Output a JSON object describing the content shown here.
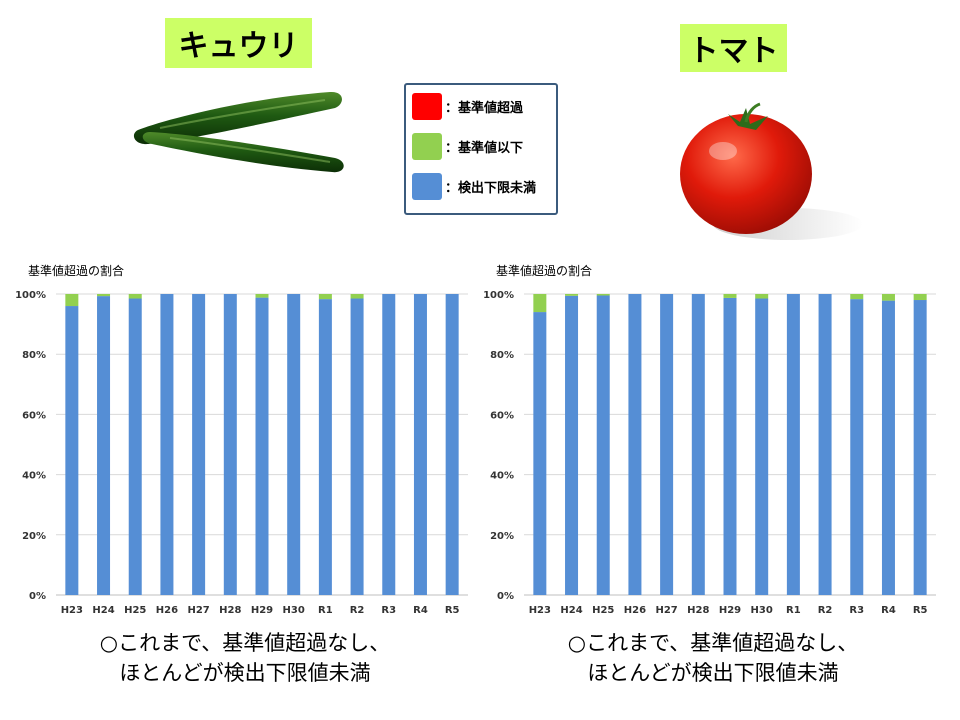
{
  "titles": {
    "left": "キュウリ",
    "right": "トマト"
  },
  "legend": [
    {
      "label": "：基準値超過",
      "color": "#ff0000"
    },
    {
      "label": "：基準値以下",
      "color": "#92d050"
    },
    {
      "label": "：検出下限未満",
      "color": "#558ed5"
    }
  ],
  "captions": {
    "left": [
      "○これまで、基準値超過なし、",
      "ほとんどが検出下限値未満"
    ],
    "right": [
      "○これまで、基準値超過なし、",
      "ほとんどが検出下限値未満"
    ]
  },
  "chart_data": [
    {
      "type": "bar",
      "stacked": true,
      "title": "基準値超過の割合",
      "categories": [
        "H23",
        "H24",
        "H25",
        "H26",
        "H27",
        "H28",
        "H29",
        "H30",
        "R1",
        "R2",
        "R3",
        "R4",
        "R5"
      ],
      "yticks": [
        "0%",
        "20%",
        "40%",
        "60%",
        "80%",
        "100%"
      ],
      "ylim": [
        0,
        100
      ],
      "grid": true,
      "series": [
        {
          "name": "：検出下限未満",
          "color": "#558ed5",
          "values": [
            96,
            99.3,
            98.5,
            100,
            100,
            100,
            98.8,
            100,
            98.3,
            98.5,
            100,
            100,
            100
          ]
        },
        {
          "name": "：基準値以下",
          "color": "#92d050",
          "values": [
            4,
            0.7,
            1.5,
            0,
            0,
            0,
            1.2,
            0,
            1.7,
            1.5,
            0,
            0,
            0
          ]
        },
        {
          "name": "：基準値超過",
          "color": "#ff0000",
          "values": [
            0,
            0,
            0,
            0,
            0,
            0,
            0,
            0,
            0,
            0,
            0,
            0,
            0
          ]
        }
      ]
    },
    {
      "type": "bar",
      "stacked": true,
      "title": "基準値超過の割合",
      "categories": [
        "H23",
        "H24",
        "H25",
        "H26",
        "H27",
        "H28",
        "H29",
        "H30",
        "R1",
        "R2",
        "R3",
        "R4",
        "R5"
      ],
      "yticks": [
        "0%",
        "20%",
        "40%",
        "60%",
        "80%",
        "100%"
      ],
      "ylim": [
        0,
        100
      ],
      "grid": true,
      "series": [
        {
          "name": "：検出下限未満",
          "color": "#558ed5",
          "values": [
            94,
            99.4,
            99.5,
            100,
            100,
            100,
            98.7,
            98.5,
            100,
            100,
            98.3,
            97.8,
            98
          ]
        },
        {
          "name": "：基準値以下",
          "color": "#92d050",
          "values": [
            6,
            0.6,
            0.5,
            0,
            0,
            0,
            1.3,
            1.5,
            0,
            0,
            1.7,
            2.2,
            2
          ]
        },
        {
          "name": "：基準値超過",
          "color": "#ff0000",
          "values": [
            0,
            0,
            0,
            0,
            0,
            0,
            0,
            0,
            0,
            0,
            0,
            0,
            0
          ]
        }
      ]
    }
  ]
}
